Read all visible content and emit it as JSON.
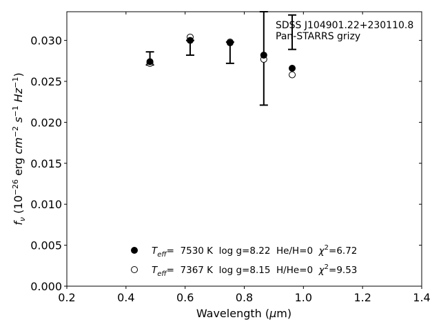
{
  "chart_data": {
    "type": "scatter",
    "title": "",
    "xlabel": {
      "main": "Wavelength (",
      "greek": "μ",
      "unit": "m)"
    },
    "ylabel": {
      "f": "f",
      "nu": "ν",
      "open": " (10",
      "e1": "−26",
      "erg": " erg ",
      "cm": "cm",
      "e2": "−2",
      "s": " s",
      "e3": "−1",
      "hz": " Hz",
      "e4": "−1",
      "close": ")"
    },
    "xlim": [
      0.2,
      1.4
    ],
    "ylim": [
      0.0,
      0.0335
    ],
    "xticks": [
      "0.2",
      "0.4",
      "0.6",
      "0.8",
      "1.0",
      "1.2",
      "1.4"
    ],
    "yticks": [
      "0.000",
      "0.005",
      "0.010",
      "0.015",
      "0.020",
      "0.025",
      "0.030"
    ],
    "annotation": [
      "SDSS J104901.22+230110.8",
      "Pan-STARRS grizy"
    ],
    "observed": {
      "x": [
        0.481,
        0.617,
        0.752,
        0.866,
        0.962
      ],
      "y": [
        0.0273,
        0.03,
        0.0296,
        0.0279,
        0.031
      ],
      "yerr_low": [
        0.027,
        0.0282,
        0.0272,
        0.0221,
        0.0289
      ],
      "yerr_high": [
        0.0286,
        0.03,
        0.0298,
        0.0335,
        0.0331
      ]
    },
    "series": [
      {
        "marker": "filled",
        "x": [
          0.481,
          0.617,
          0.752,
          0.866,
          0.962
        ],
        "values": [
          0.0274,
          0.03,
          0.0297,
          0.0282,
          0.0266
        ],
        "legend": {
          "T": "T",
          "sub": "eff",
          "text": "=  7530 K  log g=8.22  He/H=0  ",
          "chi": "χ",
          "sup": "2",
          "val": "=6.72"
        }
      },
      {
        "marker": "open",
        "x": [
          0.481,
          0.617,
          0.752,
          0.866,
          0.962
        ],
        "values": [
          0.0272,
          0.0304,
          0.0298,
          0.0277,
          0.0258
        ],
        "legend": {
          "T": "T",
          "sub": "eff",
          "text": "=  7367 K  log g=8.15  H/He=0  ",
          "chi": "χ",
          "sup": "2",
          "val": "=9.53"
        }
      }
    ],
    "legend_position": "bottom-center",
    "grid": false
  }
}
